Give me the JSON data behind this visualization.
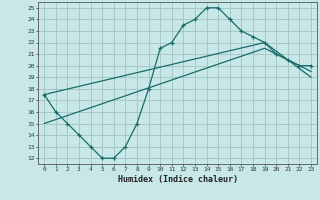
{
  "xlabel": "Humidex (Indice chaleur)",
  "ylabel": "",
  "bg_color": "#c8e8e8",
  "grid_color": "#a8c8c8",
  "line_color": "#1a6b6b",
  "x_ticks": [
    0,
    1,
    2,
    3,
    4,
    5,
    6,
    7,
    8,
    9,
    10,
    11,
    12,
    13,
    14,
    15,
    16,
    17,
    18,
    19,
    20,
    21,
    22,
    23
  ],
  "y_ticks": [
    12,
    13,
    14,
    15,
    16,
    17,
    18,
    19,
    20,
    21,
    22,
    23,
    24,
    25
  ],
  "xlim": [
    -0.5,
    23.5
  ],
  "ylim": [
    11.5,
    25.5
  ],
  "curve1_x": [
    0,
    1,
    2,
    3,
    4,
    5,
    6,
    7,
    8,
    9,
    10,
    11,
    12,
    13,
    14,
    15,
    16,
    17,
    18,
    19,
    20,
    21,
    22,
    23
  ],
  "curve1_y": [
    17.5,
    16,
    15,
    14,
    13,
    12,
    12,
    13,
    15,
    18,
    21.5,
    22,
    23.5,
    24,
    25,
    25,
    24,
    23,
    22.5,
    22,
    21,
    20.5,
    20,
    20
  ],
  "curve2_x": [
    0,
    19,
    23
  ],
  "curve2_y": [
    17.5,
    22,
    19
  ],
  "curve3_x": [
    0,
    19,
    23
  ],
  "curve3_y": [
    15,
    21.5,
    19.5
  ]
}
